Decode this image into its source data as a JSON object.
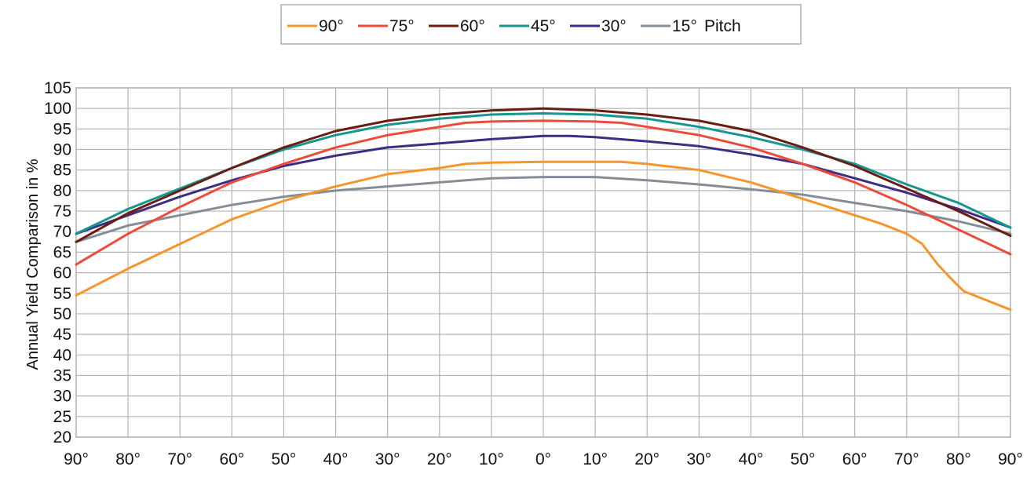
{
  "chart_data": {
    "type": "line",
    "title": "",
    "xlabel": "",
    "ylabel": "Annual Yield Comparison in %",
    "legend_suffix": "Pitch",
    "legend_position": "top-center",
    "grid": true,
    "ylim": [
      20,
      105
    ],
    "y_ticks": [
      20,
      25,
      30,
      35,
      40,
      45,
      50,
      55,
      60,
      65,
      70,
      75,
      80,
      85,
      90,
      95,
      100,
      105
    ],
    "x_ticks": [
      "90°",
      "80°",
      "70°",
      "60°",
      "50°",
      "40°",
      "30°",
      "20°",
      "10°",
      "0°",
      "10°",
      "20°",
      "30°",
      "40°",
      "50°",
      "60°",
      "70°",
      "80°",
      "90°"
    ],
    "x_positions": [
      -90,
      -80,
      -70,
      -60,
      -50,
      -40,
      -30,
      -20,
      -10,
      0,
      10,
      20,
      30,
      40,
      50,
      60,
      70,
      80,
      90
    ],
    "xlim": [
      -90,
      90
    ],
    "series": [
      {
        "name": "90°",
        "color": "#f7952d",
        "x": [
          -90,
          -80,
          -70,
          -60,
          -50,
          -40,
          -30,
          -20,
          -15,
          -10,
          0,
          10,
          15,
          20,
          30,
          40,
          50,
          60,
          65,
          70,
          73,
          76,
          79,
          81,
          84,
          87,
          90
        ],
        "values": [
          54.5,
          61,
          67,
          73,
          77.5,
          81,
          84,
          85.5,
          86.5,
          86.8,
          87,
          87,
          87,
          86.5,
          85,
          82,
          78,
          74,
          72,
          69.5,
          67,
          62,
          58,
          55.5,
          54,
          52.5,
          51
        ]
      },
      {
        "name": "75°",
        "color": "#ee4a3a",
        "x": [
          -90,
          -80,
          -70,
          -60,
          -50,
          -40,
          -30,
          -20,
          -15,
          -10,
          0,
          10,
          15,
          20,
          30,
          40,
          50,
          60,
          70,
          80,
          90
        ],
        "values": [
          62,
          69.5,
          76,
          82,
          86.5,
          90.5,
          93.5,
          95.5,
          96.5,
          96.8,
          97,
          96.8,
          96.5,
          95.5,
          93.5,
          90.5,
          86.5,
          82,
          76.5,
          70.5,
          64.5
        ]
      },
      {
        "name": "60°",
        "color": "#6b1c13",
        "x": [
          -90,
          -80,
          -70,
          -60,
          -50,
          -40,
          -30,
          -20,
          -10,
          0,
          10,
          20,
          30,
          40,
          50,
          60,
          70,
          80,
          90
        ],
        "values": [
          67.5,
          74.5,
          80,
          85.5,
          90.5,
          94.5,
          97,
          98.5,
          99.5,
          100,
          99.5,
          98.5,
          97,
          94.5,
          90.5,
          86,
          80.5,
          75,
          69
        ]
      },
      {
        "name": "45°",
        "color": "#17968f",
        "x": [
          -90,
          -80,
          -70,
          -60,
          -50,
          -40,
          -30,
          -20,
          -10,
          0,
          10,
          20,
          30,
          40,
          50,
          60,
          70,
          80,
          90
        ],
        "values": [
          69.5,
          75.5,
          80.5,
          85.5,
          90,
          93.5,
          96,
          97.5,
          98.5,
          98.8,
          98.5,
          97.5,
          95.5,
          93,
          90,
          86.5,
          81.5,
          77,
          71
        ]
      },
      {
        "name": "30°",
        "color": "#3d2d84",
        "x": [
          -90,
          -80,
          -70,
          -60,
          -50,
          -40,
          -30,
          -20,
          -10,
          0,
          5,
          10,
          20,
          30,
          40,
          50,
          60,
          70,
          80,
          90
        ],
        "values": [
          69.5,
          74,
          78.5,
          82.5,
          86,
          88.5,
          90.5,
          91.5,
          92.5,
          93.3,
          93.3,
          93,
          92,
          90.8,
          88.8,
          86.5,
          83,
          79.5,
          75.5,
          71
        ]
      },
      {
        "name": "15°",
        "color": "#858d97",
        "x": [
          -90,
          -80,
          -70,
          -60,
          -50,
          -40,
          -30,
          -20,
          -10,
          0,
          10,
          20,
          30,
          40,
          50,
          60,
          70,
          80,
          90
        ],
        "values": [
          67.5,
          71.5,
          74,
          76.5,
          78.5,
          80,
          81,
          82,
          83,
          83.3,
          83.3,
          82.5,
          81.5,
          80.3,
          79,
          77,
          75,
          72.5,
          69.5
        ]
      }
    ]
  }
}
